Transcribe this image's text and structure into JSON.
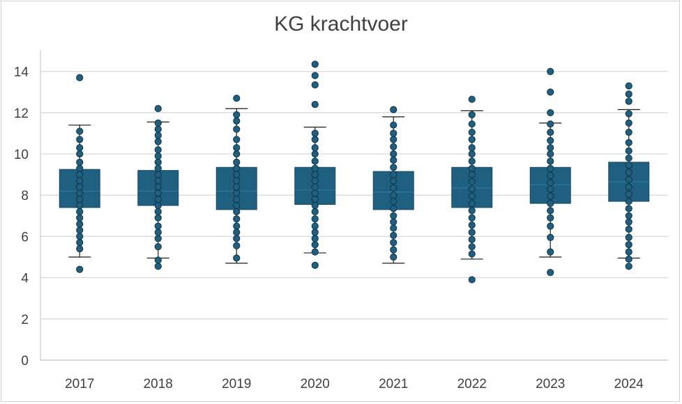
{
  "colors": {
    "box_fill": "#1f5f7f",
    "box_stroke": "#1a4a63",
    "point_fill": "#1f5f7f",
    "point_stroke": "#0f3347",
    "whisker": "#1a1a1a",
    "grid": "#d9d9d9",
    "axis": "#bfbfbf",
    "text": "#404040"
  },
  "chart_data": {
    "type": "box",
    "title": "KG krachtvoer",
    "xlabel": "",
    "ylabel": "",
    "ylim": [
      0,
      15
    ],
    "yticks": [
      0,
      2,
      4,
      6,
      8,
      10,
      12,
      14
    ],
    "grid": true,
    "legend": "none",
    "categories": [
      "2017",
      "2018",
      "2019",
      "2020",
      "2021",
      "2022",
      "2023",
      "2024"
    ],
    "boxes": [
      {
        "category": "2017",
        "whisker_low": 5.0,
        "q1": 7.4,
        "median": 8.2,
        "mean": 8.3,
        "q3": 9.25,
        "whisker_high": 11.4,
        "points": [
          4.4,
          5.4,
          5.7,
          6.0,
          6.3,
          6.6,
          6.9,
          7.2,
          7.5,
          7.8,
          8.1,
          8.4,
          8.7,
          9.0,
          9.3,
          9.6,
          10.0,
          10.3,
          10.7,
          11.1,
          13.7
        ]
      },
      {
        "category": "2018",
        "whisker_low": 4.95,
        "q1": 7.5,
        "median": 8.2,
        "mean": 8.3,
        "q3": 9.2,
        "whisker_high": 11.55,
        "points": [
          4.55,
          4.85,
          5.5,
          5.9,
          6.2,
          6.5,
          6.9,
          7.2,
          7.5,
          7.8,
          8.1,
          8.4,
          8.7,
          9.0,
          9.3,
          9.6,
          9.9,
          10.2,
          10.6,
          10.9,
          11.2,
          11.5,
          12.2
        ]
      },
      {
        "category": "2019",
        "whisker_low": 4.7,
        "q1": 7.3,
        "median": 8.2,
        "mean": 8.3,
        "q3": 9.35,
        "whisker_high": 12.2,
        "points": [
          4.95,
          5.55,
          5.9,
          6.2,
          6.5,
          6.85,
          7.2,
          7.5,
          7.8,
          8.1,
          8.4,
          8.7,
          9.0,
          9.3,
          9.6,
          10.0,
          10.3,
          10.7,
          11.2,
          11.6,
          11.9,
          12.7
        ]
      },
      {
        "category": "2020",
        "whisker_low": 5.2,
        "q1": 7.55,
        "median": 8.25,
        "mean": 8.4,
        "q3": 9.35,
        "whisker_high": 11.3,
        "points": [
          4.6,
          5.25,
          5.6,
          5.9,
          6.2,
          6.5,
          6.85,
          7.2,
          7.5,
          7.8,
          8.1,
          8.4,
          8.7,
          9.0,
          9.3,
          9.65,
          10.0,
          10.3,
          10.7,
          11.0,
          12.4,
          13.35,
          13.8,
          14.35
        ]
      },
      {
        "category": "2021",
        "whisker_low": 4.7,
        "q1": 7.3,
        "median": 8.15,
        "mean": 8.25,
        "q3": 9.15,
        "whisker_high": 11.8,
        "points": [
          5.0,
          5.35,
          5.7,
          6.05,
          6.4,
          6.7,
          7.0,
          7.35,
          7.7,
          8.0,
          8.35,
          8.7,
          9.0,
          9.35,
          9.7,
          10.0,
          10.35,
          10.7,
          11.0,
          11.4,
          12.15
        ]
      },
      {
        "category": "2022",
        "whisker_low": 4.9,
        "q1": 7.4,
        "median": 8.35,
        "mean": 8.4,
        "q3": 9.35,
        "whisker_high": 12.1,
        "points": [
          3.9,
          5.15,
          5.5,
          5.85,
          6.2,
          6.55,
          6.9,
          7.25,
          7.6,
          7.95,
          8.3,
          8.65,
          9.0,
          9.3,
          9.65,
          10.0,
          10.3,
          10.7,
          11.05,
          11.45,
          11.9,
          12.65
        ]
      },
      {
        "category": "2023",
        "whisker_low": 5.0,
        "q1": 7.6,
        "median": 8.5,
        "mean": 8.55,
        "q3": 9.35,
        "whisker_high": 11.5,
        "points": [
          4.25,
          5.25,
          5.95,
          6.5,
          6.9,
          7.25,
          7.6,
          7.95,
          8.3,
          8.6,
          8.95,
          9.3,
          9.65,
          10.0,
          10.3,
          10.65,
          11.05,
          11.45,
          12.0,
          13.0,
          14.0
        ]
      },
      {
        "category": "2024",
        "whisker_low": 4.95,
        "q1": 7.7,
        "median": 8.65,
        "mean": 8.7,
        "q3": 9.6,
        "whisker_high": 12.15,
        "points": [
          4.55,
          4.9,
          5.25,
          5.6,
          5.95,
          6.35,
          6.7,
          7.0,
          7.35,
          7.7,
          8.05,
          8.4,
          8.75,
          9.1,
          9.45,
          9.8,
          10.15,
          10.55,
          11.05,
          11.5,
          11.95,
          12.55,
          12.9,
          13.3
        ]
      }
    ]
  }
}
